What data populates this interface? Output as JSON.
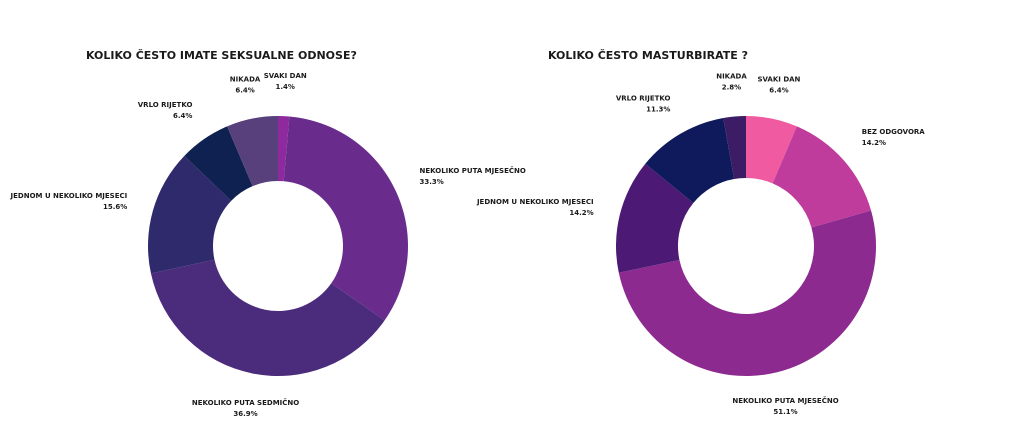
{
  "chart_data": [
    {
      "type": "donut",
      "title": "KOLIKO ČESTO IMATE SEKSUALNE ODNOSE?",
      "categories": [
        "SVAKI DAN",
        "NEKOLIKO PUTA MJESEČNO",
        "NEKOLIKO PUTA SEDMIČNO",
        "JEDNOM U NEKOLIKO MJESECI",
        "VRLO RIJETKO",
        "NIKADA"
      ],
      "values": [
        1.4,
        33.3,
        36.9,
        15.6,
        6.4,
        6.4
      ],
      "value_labels": [
        "1.4%",
        "33.3%",
        "36.9%",
        "15.6%",
        "6.4%",
        "6.4%"
      ],
      "colors": [
        "#8e2a9e",
        "#6a2c8c",
        "#4b2b7c",
        "#2f2a6c",
        "#0f2150",
        "#57407c"
      ]
    },
    {
      "type": "donut",
      "title": "KOLIKO ČESTO MASTURBIRATE ?",
      "categories": [
        "SVAKI DAN",
        "BEZ ODGOVORA",
        "NEKOLIKO PUTA MJESEČNO",
        "JEDNOM U NEKOLIKO MJESECI",
        "VRLO RIJETKO",
        "NIKADA"
      ],
      "values": [
        6.4,
        14.2,
        51.1,
        14.2,
        11.3,
        2.8
      ],
      "value_labels": [
        "6.4%",
        "14.2%",
        "51.1%",
        "14.2%",
        "11.3%",
        "2.8%"
      ],
      "colors": [
        "#f05aa0",
        "#c03c9c",
        "#8c2a90",
        "#4c1a74",
        "#0e1a5c",
        "#3c1c64"
      ]
    }
  ]
}
